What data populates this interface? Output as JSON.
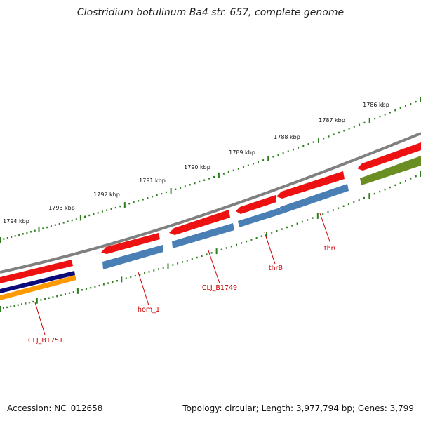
{
  "title": "Clostridium botulinum Ba4 str. 657, complete genome",
  "footer": {
    "accession": "Accession: NC_012658",
    "summary": "Topology: circular; Length: 3,977,794 bp; Genes: 3,799"
  },
  "ruler": {
    "labels": [
      "1786 kbp",
      "1787 kbp",
      "1788 kbp",
      "1789 kbp",
      "1790 kbp",
      "1791 kbp",
      "1792 kbp",
      "1793 kbp",
      "1794 kbp"
    ]
  },
  "colors": {
    "backbone": "#808080",
    "forward_cds": "#ee1111",
    "reverse_cds": "#4a7fb5",
    "other_cds": "#6b8e23",
    "navy_feature": "#0a0a7a",
    "orange_feature": "#ff9900",
    "tick": "#2f7d1f",
    "label": "#cc0000"
  },
  "gene_labels": [
    "CLJ_B1751",
    "hom_1",
    "CLJ_B1749",
    "thrB",
    "thrC"
  ]
}
